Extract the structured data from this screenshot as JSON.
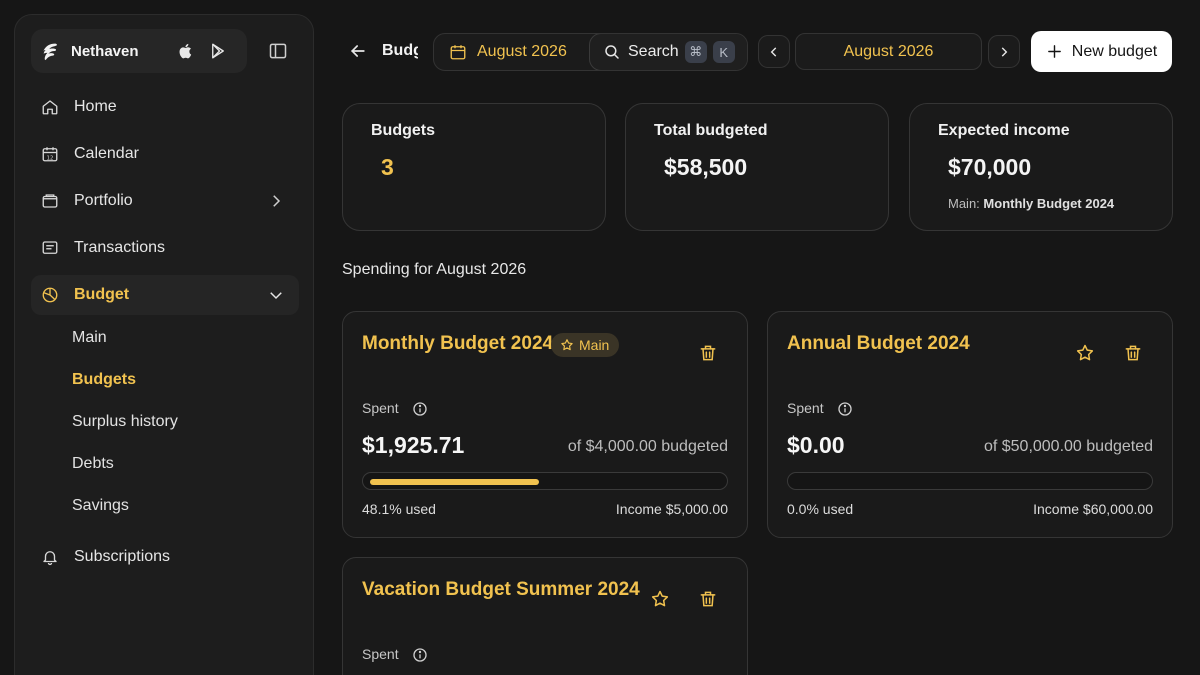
{
  "brand": {
    "name": "Nethaven"
  },
  "nav": {
    "home": "Home",
    "calendar": "Calendar",
    "portfolio": "Portfolio",
    "transactions": "Transactions",
    "budget": "Budget",
    "subscriptions": "Subscriptions",
    "budget_sub": [
      "Main",
      "Budgets",
      "Surplus history",
      "Debts",
      "Savings"
    ],
    "active_sub": "Budgets"
  },
  "topbar": {
    "breadcrumb": "Budgets",
    "date_picker": "August 2026",
    "search_label": "Search",
    "shortcut_keys": [
      "⌘",
      "K"
    ],
    "month": "August 2026",
    "new_budget": "New budget"
  },
  "stats": {
    "budgets": {
      "title": "Budgets",
      "value": "3"
    },
    "total_budgeted": {
      "title": "Total budgeted",
      "value": "$58,500"
    },
    "expected_income": {
      "title": "Expected income",
      "value": "$70,000",
      "note_label": "Main:",
      "note_value": "Monthly Budget 2024"
    }
  },
  "section_title": "Spending for August 2026",
  "budgets": [
    {
      "name": "Monthly Budget 2024",
      "badge": "Main",
      "spent_label": "Spent",
      "spent": "$1,925.71",
      "of_budgeted": "of $4,000.00 budgeted",
      "used_fraction": 0.481,
      "used_text": "48.1% used",
      "income": "Income $5,000.00"
    },
    {
      "name": "Annual Budget 2024",
      "spent_label": "Spent",
      "spent": "$0.00",
      "of_budgeted": "of $50,000.00 budgeted",
      "used_fraction": 0.0,
      "used_text": "0.0% used",
      "income": "Income $60,000.00"
    },
    {
      "name": "Vacation Budget Summer 2024",
      "spent_label": "Spent"
    }
  ],
  "colors": {
    "accent": "#f1c24f",
    "background": "#161616",
    "card": "#1a1a1a"
  }
}
